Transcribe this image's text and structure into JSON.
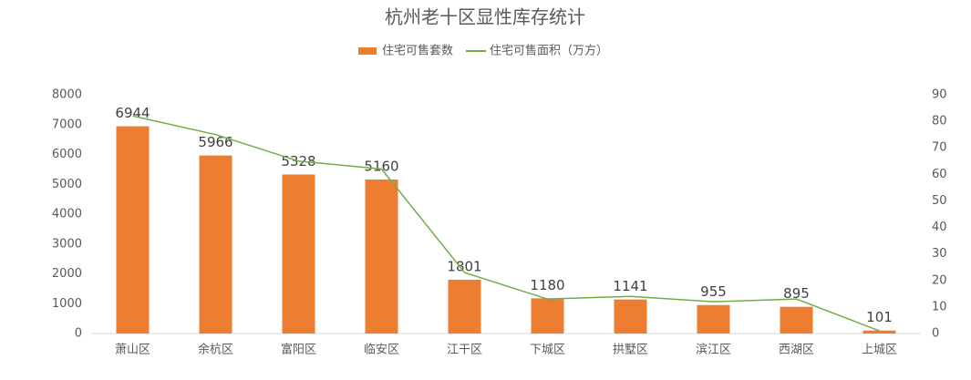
{
  "chart_data": {
    "type": "bar",
    "title": "杭州老十区显性库存统计",
    "categories": [
      "萧山区",
      "余杭区",
      "富阳区",
      "临安区",
      "江干区",
      "下城区",
      "拱墅区",
      "滨江区",
      "西湖区",
      "上城区"
    ],
    "series": [
      {
        "name": "住宅可售套数",
        "color": "#ed7d31",
        "type": "bar",
        "values": [
          6944,
          5966,
          5328,
          5160,
          1801,
          1180,
          1141,
          955,
          895,
          101
        ]
      },
      {
        "name": "住宅可售面积（万方）",
        "color": "#70ad47",
        "type": "line",
        "axis": "y2",
        "values": [
          82,
          75,
          65,
          62,
          23,
          13,
          14,
          12,
          13,
          1
        ]
      }
    ],
    "ylim": [
      0,
      8000
    ],
    "yticks": [
      0,
      1000,
      2000,
      3000,
      4000,
      5000,
      6000,
      7000,
      8000
    ],
    "y2lim": [
      0,
      90
    ],
    "y2ticks": [
      0,
      10,
      20,
      30,
      40,
      50,
      60,
      70,
      80,
      90
    ],
    "legend": "top"
  }
}
